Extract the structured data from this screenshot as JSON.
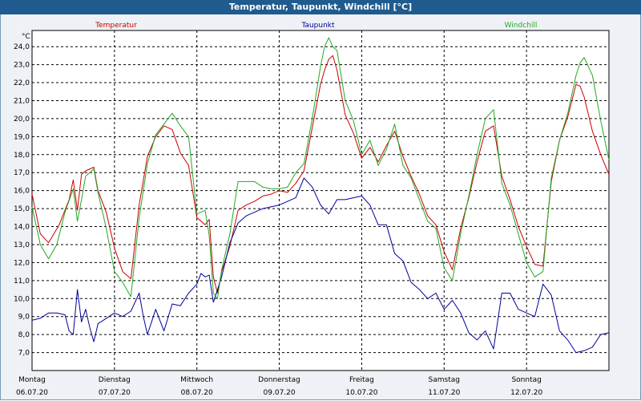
{
  "window": {
    "title": "Temperatur, Taupunkt, Windchill [°C]"
  },
  "colors": {
    "temperatur": "#cc0000",
    "taupunkt": "#000099",
    "windchill": "#22aa22"
  },
  "chart_data": {
    "type": "line",
    "title": "Temperatur, Taupunkt, Windchill [°C]",
    "ylabel": "°C",
    "ylim": [
      6.0,
      24.9
    ],
    "yticks": [
      "7,0",
      "8,0",
      "9,0",
      "10,0",
      "11,0",
      "12,0",
      "13,0",
      "14,0",
      "15,0",
      "16,0",
      "17,0",
      "18,0",
      "19,0",
      "20,0",
      "21,0",
      "22,0",
      "23,0",
      "24,0"
    ],
    "grid": true,
    "xlim": [
      0,
      7
    ],
    "days": [
      {
        "weekday": "Montag",
        "date": "06.07.20"
      },
      {
        "weekday": "Dienstag",
        "date": "07.07.20"
      },
      {
        "weekday": "Mittwoch",
        "date": "08.07.20"
      },
      {
        "weekday": "Donnerstag",
        "date": "09.07.20"
      },
      {
        "weekday": "Freitag",
        "date": "10.07.20"
      },
      {
        "weekday": "Samstag",
        "date": "11.07.20"
      },
      {
        "weekday": "Sonntag",
        "date": "12.07.20"
      }
    ],
    "series": [
      {
        "name": "Temperatur",
        "color": "#cc0000",
        "x": [
          0,
          0.1,
          0.2,
          0.33,
          0.45,
          0.5,
          0.55,
          0.6,
          0.65,
          0.75,
          0.8,
          0.9,
          1.0,
          1.1,
          1.2,
          1.3,
          1.4,
          1.5,
          1.6,
          1.7,
          1.8,
          1.9,
          2.0,
          2.1,
          2.15,
          2.2,
          2.25,
          2.3,
          2.4,
          2.5,
          2.6,
          2.7,
          2.8,
          2.9,
          3.0,
          3.1,
          3.2,
          3.3,
          3.4,
          3.5,
          3.55,
          3.6,
          3.65,
          3.7,
          3.8,
          3.9,
          4.0,
          4.1,
          4.2,
          4.3,
          4.4,
          4.5,
          4.6,
          4.7,
          4.8,
          4.9,
          5.0,
          5.1,
          5.2,
          5.3,
          5.4,
          5.5,
          5.6,
          5.7,
          5.8,
          5.9,
          6.0,
          6.1,
          6.2,
          6.3,
          6.4,
          6.5,
          6.6,
          6.65,
          6.7,
          6.8,
          6.9,
          7.0
        ],
        "values": [
          15.8,
          13.6,
          13.1,
          14.1,
          15.5,
          16.6,
          14.9,
          16.9,
          17.1,
          17.3,
          16.0,
          14.8,
          12.8,
          11.5,
          11.1,
          15.2,
          17.9,
          19.0,
          19.6,
          19.4,
          18.1,
          17.4,
          14.5,
          14.1,
          14.4,
          11.2,
          10.3,
          11.5,
          12.9,
          14.9,
          15.2,
          15.4,
          15.7,
          15.8,
          16.0,
          15.9,
          16.4,
          17.1,
          19.5,
          21.9,
          22.7,
          23.3,
          23.5,
          22.7,
          20.2,
          19.2,
          17.8,
          18.4,
          17.6,
          18.5,
          19.3,
          17.9,
          16.8,
          15.8,
          14.6,
          14.1,
          12.6,
          11.6,
          13.9,
          15.6,
          17.6,
          19.3,
          19.6,
          16.8,
          15.5,
          14.0,
          12.9,
          11.9,
          11.8,
          16.5,
          18.8,
          20.1,
          21.9,
          21.8,
          21.2,
          19.3,
          18.0,
          16.9
        ]
      },
      {
        "name": "Taupunkt",
        "color": "#000099",
        "x": [
          0,
          0.1,
          0.2,
          0.3,
          0.4,
          0.45,
          0.5,
          0.55,
          0.6,
          0.65,
          0.7,
          0.75,
          0.8,
          0.9,
          1.0,
          1.1,
          1.2,
          1.3,
          1.35,
          1.4,
          1.5,
          1.6,
          1.7,
          1.8,
          1.9,
          2.0,
          2.05,
          2.1,
          2.15,
          2.2,
          2.3,
          2.4,
          2.5,
          2.6,
          2.7,
          2.8,
          2.9,
          3.0,
          3.1,
          3.2,
          3.3,
          3.4,
          3.5,
          3.6,
          3.7,
          3.8,
          3.9,
          4.0,
          4.1,
          4.2,
          4.3,
          4.4,
          4.5,
          4.6,
          4.7,
          4.8,
          4.9,
          5.0,
          5.1,
          5.2,
          5.3,
          5.4,
          5.5,
          5.6,
          5.7,
          5.8,
          5.9,
          6.0,
          6.1,
          6.2,
          6.3,
          6.4,
          6.5,
          6.6,
          6.7,
          6.8,
          6.9,
          7.0
        ],
        "values": [
          8.8,
          8.9,
          9.2,
          9.2,
          9.1,
          8.2,
          8.0,
          10.5,
          8.7,
          9.4,
          8.4,
          7.6,
          8.6,
          8.9,
          9.2,
          9.0,
          9.3,
          10.3,
          9.0,
          8.0,
          9.4,
          8.2,
          9.7,
          9.6,
          10.3,
          10.8,
          11.4,
          11.2,
          11.3,
          9.8,
          11.2,
          13.1,
          14.2,
          14.6,
          14.8,
          15.0,
          15.1,
          15.2,
          15.4,
          15.6,
          16.7,
          16.2,
          15.2,
          14.7,
          15.5,
          15.5,
          15.6,
          15.7,
          15.2,
          14.1,
          14.1,
          12.5,
          12.1,
          10.9,
          10.5,
          10.0,
          10.3,
          9.4,
          9.9,
          9.2,
          8.1,
          7.7,
          8.2,
          7.2,
          10.3,
          10.3,
          9.4,
          9.2,
          9.0,
          10.8,
          10.2,
          8.2,
          7.7,
          7.0,
          7.1,
          7.3,
          8.0,
          8.1
        ]
      },
      {
        "name": "Windchill",
        "color": "#22aa22",
        "x": [
          0,
          0.1,
          0.2,
          0.3,
          0.4,
          0.5,
          0.55,
          0.6,
          0.65,
          0.75,
          0.8,
          0.9,
          1.0,
          1.1,
          1.2,
          1.3,
          1.4,
          1.5,
          1.6,
          1.7,
          1.8,
          1.9,
          2.0,
          2.1,
          2.15,
          2.2,
          2.25,
          2.3,
          2.4,
          2.5,
          2.6,
          2.7,
          2.8,
          2.9,
          3.0,
          3.1,
          3.2,
          3.3,
          3.4,
          3.5,
          3.55,
          3.6,
          3.65,
          3.7,
          3.8,
          3.9,
          4.0,
          4.1,
          4.2,
          4.3,
          4.4,
          4.5,
          4.6,
          4.7,
          4.8,
          4.9,
          5.0,
          5.1,
          5.2,
          5.3,
          5.4,
          5.5,
          5.6,
          5.7,
          5.8,
          5.9,
          6.0,
          6.1,
          6.2,
          6.3,
          6.4,
          6.5,
          6.6,
          6.65,
          6.7,
          6.8,
          6.9,
          7.0
        ],
        "values": [
          15.1,
          13.0,
          12.2,
          13.0,
          14.8,
          16.1,
          14.3,
          15.5,
          16.8,
          17.2,
          15.9,
          13.9,
          11.5,
          10.9,
          10.1,
          14.5,
          17.5,
          19.1,
          19.7,
          20.3,
          19.6,
          19.0,
          14.7,
          14.9,
          13.5,
          10.3,
          10.0,
          11.6,
          13.6,
          16.5,
          16.5,
          16.5,
          16.2,
          16.1,
          16.1,
          16.2,
          17.0,
          17.5,
          20.0,
          22.9,
          24.0,
          24.5,
          24.0,
          23.8,
          21.0,
          19.9,
          18.0,
          18.8,
          17.4,
          18.3,
          19.7,
          17.4,
          16.7,
          15.5,
          14.3,
          13.9,
          11.7,
          11.0,
          13.6,
          15.7,
          18.0,
          20.0,
          20.5,
          16.4,
          15.2,
          13.6,
          12.0,
          11.2,
          11.5,
          16.7,
          18.8,
          20.3,
          22.4,
          23.1,
          23.4,
          22.4,
          19.9,
          17.7
        ]
      }
    ]
  }
}
